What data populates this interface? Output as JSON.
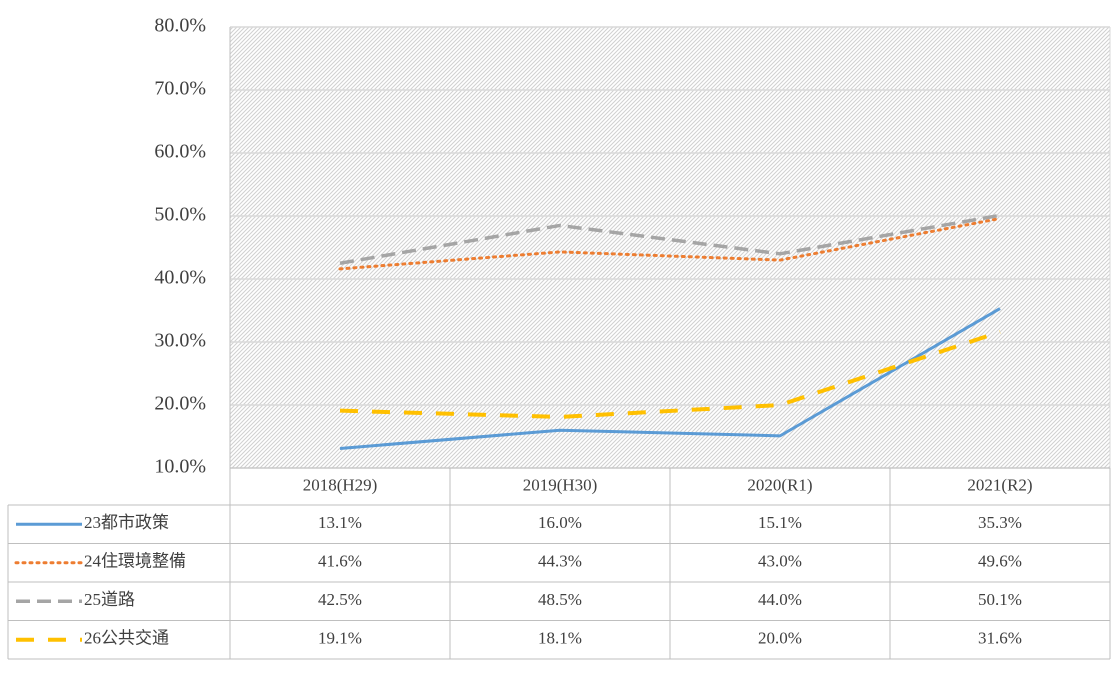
{
  "chart_data": {
    "type": "line",
    "categories": [
      "2018(H29)",
      "2019(H30)",
      "2020(R1)",
      "2021(R2)"
    ],
    "series": [
      {
        "name": "23都市政策",
        "color": "#5b9bd5",
        "style": "solid",
        "values": [
          13.1,
          16.0,
          15.1,
          35.3
        ],
        "value_labels": [
          "13.1%",
          "16.0%",
          "15.1%",
          "35.3%"
        ]
      },
      {
        "name": "24住環境整備",
        "color": "#ed7d31",
        "style": "dotted",
        "values": [
          41.6,
          44.3,
          43.0,
          49.6
        ],
        "value_labels": [
          "41.6%",
          "44.3%",
          "43.0%",
          "49.6%"
        ]
      },
      {
        "name": "25道路",
        "color": "#a5a5a5",
        "style": "dashed",
        "values": [
          42.5,
          48.5,
          44.0,
          50.1
        ],
        "value_labels": [
          "42.5%",
          "48.5%",
          "44.0%",
          "50.1%"
        ]
      },
      {
        "name": "26公共交通",
        "color": "#ffc000",
        "style": "longdash",
        "values": [
          19.1,
          18.1,
          20.0,
          31.6
        ],
        "value_labels": [
          "19.1%",
          "18.1%",
          "20.0%",
          "31.6%"
        ]
      }
    ],
    "ylim": [
      10,
      80
    ],
    "yticks": [
      {
        "value": 10,
        "label": "10.0%"
      },
      {
        "value": 20,
        "label": "20.0%"
      },
      {
        "value": 30,
        "label": "30.0%"
      },
      {
        "value": 40,
        "label": "40.0%"
      },
      {
        "value": 50,
        "label": "50.0%"
      },
      {
        "value": 60,
        "label": "60.0%"
      },
      {
        "value": 70,
        "label": "70.0%"
      },
      {
        "value": 80,
        "label": "80.0%"
      }
    ],
    "grid": true,
    "data_table": true
  }
}
